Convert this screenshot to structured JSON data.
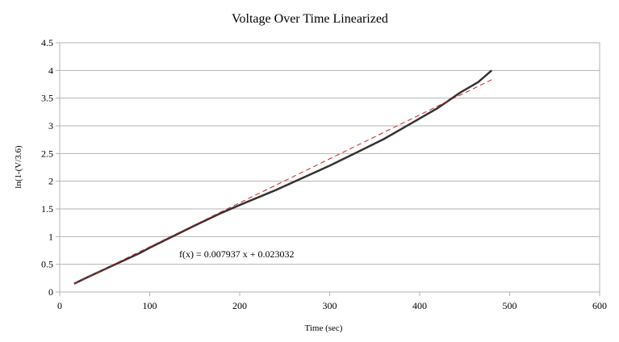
{
  "chart_data": {
    "type": "line",
    "title": "Voltage Over Time Linearized",
    "xlabel": "Time (sec)",
    "ylabel": "ln(1-(V/3.6)",
    "xlim": [
      0,
      600
    ],
    "ylim": [
      0,
      4.5
    ],
    "x_ticks": [
      "0",
      "100",
      "200",
      "300",
      "400",
      "500",
      "600"
    ],
    "y_ticks": [
      "0",
      "0.5",
      "1",
      "1.5",
      "2",
      "2.5",
      "3",
      "3.5",
      "4",
      "4.5"
    ],
    "grid": "horizontal",
    "legend": "none",
    "series": [
      {
        "color": "#333333",
        "x": [
          16,
          30,
          50,
          70,
          90,
          100,
          120,
          150,
          180,
          200,
          240,
          270,
          300,
          330,
          360,
          390,
          420,
          445,
          465,
          480
        ],
        "y": [
          0.15,
          0.26,
          0.41,
          0.56,
          0.71,
          0.8,
          0.96,
          1.2,
          1.43,
          1.57,
          1.84,
          2.06,
          2.28,
          2.52,
          2.76,
          3.04,
          3.32,
          3.6,
          3.79,
          4.0
        ]
      }
    ],
    "trendline": {
      "color": "#cc2222",
      "slope": 0.007937,
      "intercept": 0.023032,
      "x_range": [
        16,
        480
      ],
      "style": "dashed"
    },
    "annotation": "f(x) = 0.007937 x + 0.023032"
  }
}
